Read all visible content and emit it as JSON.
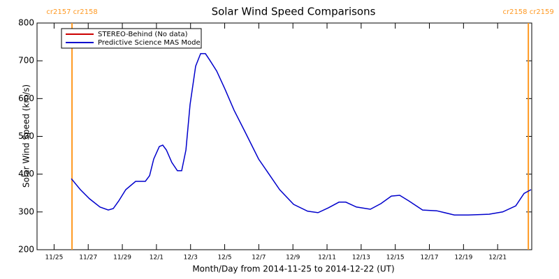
{
  "chart_data": {
    "type": "line",
    "title": "Solar Wind Speed Comparisons",
    "xlabel": "Month/Day from 2014-11-25 to 2014-12-22 (UT)",
    "ylabel": "Solar Wind Speed (km/s)",
    "x": [
      1.01,
      1.54,
      2.07,
      2.69,
      3.18,
      3.47,
      3.79,
      4.2,
      4.78,
      5.35,
      5.6,
      5.84,
      6.17,
      6.37,
      6.58,
      6.9,
      7.23,
      7.48,
      7.73,
      7.97,
      8.3,
      8.59,
      8.87,
      9.12,
      9.53,
      10.02,
      10.55,
      11.17,
      11.99,
      12.6,
      13.22,
      14.04,
      14.86,
      15.47,
      16.08,
      16.7,
      17.1,
      17.72,
      18.54,
      19.16,
      19.77,
      20.26,
      20.8,
      21.6,
      22.43,
      23.46,
      24.28,
      25.5,
      26.3,
      27.06,
      27.55,
      27.96
    ],
    "series": [
      {
        "name": "STEREO-Behind (No data)",
        "color": "#cc0000",
        "values": [
          null,
          null,
          null,
          null,
          null,
          null,
          null,
          null,
          null,
          null,
          null,
          null,
          null,
          null,
          null,
          null,
          null,
          null,
          null,
          null,
          null,
          null,
          null,
          null,
          null,
          null,
          null,
          null,
          null,
          null,
          null,
          null,
          null,
          null,
          null,
          null,
          null,
          null,
          null,
          null,
          null,
          null,
          null,
          null,
          null,
          null,
          null,
          null,
          null,
          null,
          null,
          null
        ]
      },
      {
        "name": "Predictive Science MAS Model",
        "color": "#0000cc",
        "values": [
          388,
          359,
          335,
          313,
          305,
          309,
          329,
          359,
          381,
          381,
          396,
          440,
          473,
          477,
          464,
          431,
          409,
          409,
          464,
          584,
          686,
          719,
          719,
          702,
          673,
          625,
          569,
          514,
          440,
          400,
          359,
          320,
          302,
          298,
          311,
          326,
          326,
          313,
          307,
          322,
          342,
          344,
          329,
          305,
          303,
          292,
          292,
          294,
          300,
          316,
          349,
          359
        ]
      }
    ],
    "xlim": [
      -1,
      28
    ],
    "xticks": [
      {
        "value": 0,
        "label": "11/25"
      },
      {
        "value": 2,
        "label": "11/27"
      },
      {
        "value": 4,
        "label": "11/29"
      },
      {
        "value": 6,
        "label": "12/1"
      },
      {
        "value": 8,
        "label": "12/3"
      },
      {
        "value": 10,
        "label": "12/5"
      },
      {
        "value": 12,
        "label": "12/7"
      },
      {
        "value": 14,
        "label": "12/9"
      },
      {
        "value": 16,
        "label": "12/11"
      },
      {
        "value": 18,
        "label": "12/13"
      },
      {
        "value": 20,
        "label": "12/15"
      },
      {
        "value": 22,
        "label": "12/17"
      },
      {
        "value": 24,
        "label": "12/19"
      },
      {
        "value": 26,
        "label": "12/21"
      }
    ],
    "ylim": [
      200,
      800
    ],
    "yticks": [
      200,
      300,
      400,
      500,
      600,
      700,
      800
    ],
    "annotations": [
      {
        "text": "cr2157 cr2158",
        "x": 1.05,
        "color": "#ff9922"
      },
      {
        "text": "cr2158 cr2159",
        "x": 27.8,
        "color": "#ff9922"
      }
    ],
    "legend": "upper left"
  }
}
